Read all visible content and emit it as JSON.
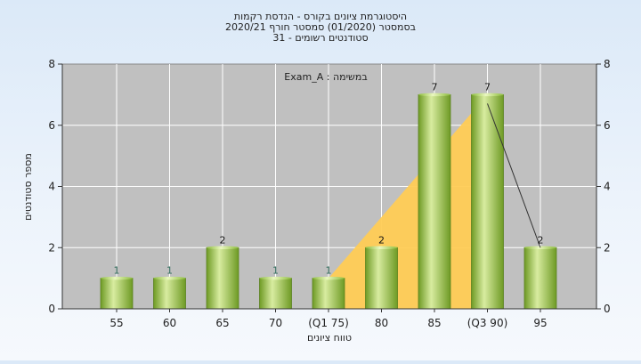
{
  "chart_data": {
    "type": "bar",
    "title_lines": [
      "היסטוגרמת ציונים בקורס - הנדסת רקמות",
      "בסמסטר  (01/2020)  סמסטר חורף 2020/21",
      "סטודנטים רשומים - 31"
    ],
    "annotation": "Exam_A : במשימה",
    "categories": [
      "55",
      "60",
      "65",
      "70",
      "(Q1 75)",
      "80",
      "85",
      "(Q3 90)",
      "95"
    ],
    "values": [
      1,
      1,
      2,
      1,
      1,
      2,
      7,
      7,
      2
    ],
    "data_labels": [
      "1",
      "1",
      "2",
      "1",
      "1",
      "2",
      "7",
      "7",
      "2"
    ],
    "xlabel": "טווח ציונים",
    "ylabel": "מספר סטודנטים",
    "ylim": [
      0,
      8
    ],
    "yticks": [
      "0",
      "2",
      "4",
      "6",
      "8"
    ],
    "grid": true,
    "colors": {
      "plot_bg": "#c0c0c0",
      "bar_light": "#d8eca0",
      "bar_dark": "#6e9a24",
      "iqr_area": "#ffcc55",
      "line": "#333333"
    }
  }
}
